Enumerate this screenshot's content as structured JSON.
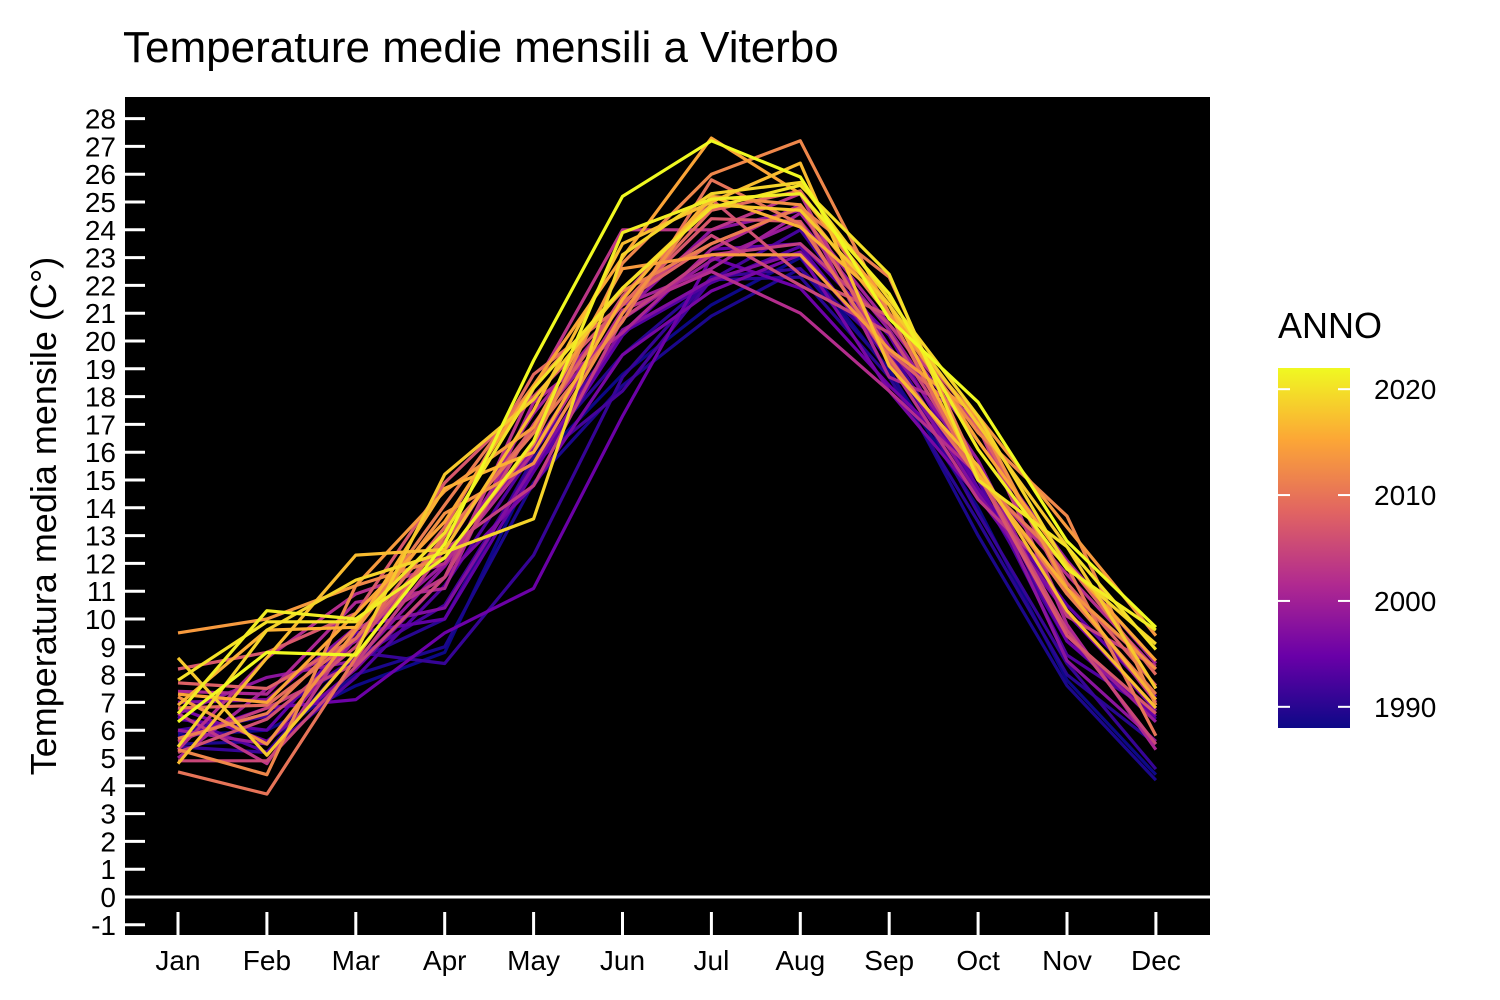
{
  "chart_data": {
    "type": "line",
    "title": "Temperature medie mensili a Viterbo",
    "xlabel": "",
    "ylabel": "Temperatura media mensile (C°)",
    "categories": [
      "Jan",
      "Feb",
      "Mar",
      "Apr",
      "May",
      "Jun",
      "Jul",
      "Aug",
      "Sep",
      "Oct",
      "Nov",
      "Dec"
    ],
    "y_ticks": [
      "-1",
      "0",
      "1",
      "2",
      "3",
      "4",
      "5",
      "6",
      "7",
      "8",
      "9",
      "10",
      "11",
      "12",
      "13",
      "14",
      "15",
      "16",
      "17",
      "18",
      "19",
      "20",
      "21",
      "22",
      "23",
      "24",
      "25",
      "26",
      "27",
      "28"
    ],
    "ylim": [
      -1.3,
      28.8
    ],
    "background": "#000000",
    "zero_line_color": "#ffffff",
    "grid": false,
    "legend": {
      "title": "ANNO",
      "placement": "right",
      "type": "colorbar",
      "colormap": "plasma",
      "range": [
        1988,
        2022
      ],
      "labels": [
        "2020",
        "2010",
        "2000",
        "1990"
      ],
      "label_values": [
        2020,
        2010,
        2000,
        1990
      ],
      "colors": [
        "#0d0887",
        "#6a00a8",
        "#b12a90",
        "#e16462",
        "#fca636",
        "#f0f921"
      ]
    },
    "series": [
      {
        "year": 1988,
        "values": [
          5.8,
          6.0,
          7.6,
          8.8,
          15.5,
          18.8,
          21.3,
          23.0,
          18.9,
          14.0,
          7.8,
          4.4
        ]
      },
      {
        "year": 1989,
        "values": [
          5.5,
          5.6,
          8.0,
          9.0,
          14.9,
          18.4,
          20.9,
          22.6,
          19.0,
          13.0,
          7.6,
          4.2
        ]
      },
      {
        "year": 1990,
        "values": [
          5.9,
          6.5,
          8.5,
          10.0,
          15.8,
          19.5,
          22.2,
          22.3,
          18.7,
          13.5,
          8.0,
          5.5
        ]
      },
      {
        "year": 1991,
        "values": [
          5.4,
          5.2,
          8.8,
          8.4,
          12.3,
          18.7,
          22.3,
          22.6,
          19.6,
          13.8,
          8.4,
          4.6
        ]
      },
      {
        "year": 1992,
        "values": [
          6.0,
          6.5,
          8.6,
          10.5,
          15.6,
          18.2,
          22.2,
          24.0,
          19.7,
          14.7,
          9.2,
          6.4
        ]
      },
      {
        "year": 1993,
        "values": [
          6.5,
          5.2,
          7.9,
          11.2,
          16.0,
          20.3,
          22.1,
          23.4,
          19.3,
          15.0,
          8.7,
          6.6
        ]
      },
      {
        "year": 1994,
        "values": [
          6.4,
          6.0,
          9.5,
          10.0,
          15.3,
          20.2,
          23.3,
          23.5,
          20.2,
          14.7,
          10.5,
          7.2
        ]
      },
      {
        "year": 1995,
        "values": [
          5.7,
          6.8,
          7.1,
          9.5,
          11.1,
          17.3,
          23.0,
          21.9,
          18.4,
          15.3,
          9.2,
          6.5
        ]
      },
      {
        "year": 1996,
        "values": [
          6.8,
          5.6,
          8.2,
          11.5,
          14.8,
          19.5,
          21.8,
          23.1,
          18.2,
          14.4,
          10.2,
          6.8
        ]
      },
      {
        "year": 1997,
        "values": [
          7.0,
          7.1,
          9.7,
          10.4,
          15.5,
          20.4,
          22.2,
          23.2,
          19.5,
          14.5,
          10.3,
          6.7
        ]
      },
      {
        "year": 1998,
        "values": [
          6.6,
          7.9,
          8.5,
          11.9,
          16.2,
          21.0,
          24.0,
          24.7,
          19.8,
          15.4,
          8.5,
          5.6
        ]
      },
      {
        "year": 1999,
        "values": [
          6.0,
          5.5,
          9.3,
          12.0,
          17.0,
          20.8,
          22.9,
          24.3,
          20.4,
          15.7,
          9.4,
          6.3
        ]
      },
      {
        "year": 2000,
        "values": [
          5.0,
          7.5,
          9.2,
          12.5,
          17.4,
          21.3,
          22.6,
          24.6,
          20.6,
          16.4,
          12.1,
          8.4
        ]
      },
      {
        "year": 2001,
        "values": [
          7.4,
          7.3,
          10.6,
          11.1,
          17.8,
          20.3,
          23.3,
          24.9,
          18.7,
          17.3,
          9.8,
          5.3
        ]
      },
      {
        "year": 2002,
        "values": [
          5.3,
          8.6,
          10.9,
          12.0,
          16.0,
          21.1,
          22.5,
          21.0,
          18.2,
          15.2,
          11.6,
          8.2
        ]
      },
      {
        "year": 2003,
        "values": [
          6.6,
          4.8,
          9.6,
          11.5,
          18.3,
          24.0,
          24.0,
          25.3,
          19.2,
          14.3,
          11.1,
          7.0
        ]
      },
      {
        "year": 2004,
        "values": [
          5.6,
          6.8,
          8.4,
          12.5,
          14.8,
          20.8,
          23.1,
          23.5,
          20.6,
          16.9,
          10.1,
          8.3
        ]
      },
      {
        "year": 2005,
        "values": [
          4.9,
          4.9,
          8.3,
          11.5,
          17.0,
          21.4,
          23.8,
          22.0,
          20.3,
          15.3,
          9.6,
          5.5
        ]
      },
      {
        "year": 2006,
        "values": [
          5.2,
          6.4,
          9.0,
          13.0,
          16.7,
          21.6,
          25.1,
          22.4,
          20.9,
          17.1,
          11.0,
          8.2
        ]
      },
      {
        "year": 2007,
        "values": [
          8.2,
          8.8,
          10.2,
          14.9,
          18.0,
          21.3,
          24.4,
          24.3,
          19.3,
          15.2,
          9.4,
          6.6
        ]
      },
      {
        "year": 2008,
        "values": [
          7.7,
          7.5,
          9.3,
          12.8,
          16.9,
          21.4,
          23.5,
          24.8,
          19.6,
          16.9,
          11.3,
          7.6
        ]
      },
      {
        "year": 2009,
        "values": [
          6.8,
          6.9,
          9.3,
          13.3,
          18.8,
          21.3,
          24.7,
          25.4,
          21.0,
          15.0,
          12.0,
          8.0
        ]
      },
      {
        "year": 2010,
        "values": [
          4.5,
          3.7,
          8.6,
          13.0,
          16.7,
          20.7,
          25.8,
          24.2,
          19.4,
          15.1,
          11.9,
          5.8
        ]
      },
      {
        "year": 2011,
        "values": [
          5.7,
          6.6,
          9.7,
          14.1,
          18.4,
          21.8,
          23.5,
          24.8,
          22.3,
          15.3,
          10.9,
          7.3
        ]
      },
      {
        "year": 2012,
        "values": [
          5.3,
          4.4,
          11.2,
          12.2,
          16.3,
          22.8,
          26.0,
          27.2,
          21.0,
          16.7,
          13.7,
          6.9
        ]
      },
      {
        "year": 2013,
        "values": [
          7.2,
          5.5,
          9.6,
          13.8,
          15.6,
          21.0,
          25.2,
          24.9,
          20.9,
          17.2,
          11.1,
          8.2
        ]
      },
      {
        "year": 2014,
        "values": [
          9.5,
          10.0,
          11.2,
          14.6,
          16.9,
          22.6,
          23.1,
          23.1,
          19.7,
          17.3,
          13.3,
          9.4
        ]
      },
      {
        "year": 2015,
        "values": [
          7.3,
          7.0,
          10.2,
          13.5,
          18.4,
          23.0,
          27.3,
          25.3,
          21.3,
          16.4,
          12.0,
          8.5
        ]
      },
      {
        "year": 2016,
        "values": [
          6.9,
          9.6,
          9.7,
          14.7,
          16.0,
          21.5,
          25.2,
          24.1,
          21.3,
          15.2,
          11.1,
          7.1
        ]
      },
      {
        "year": 2017,
        "values": [
          4.8,
          8.6,
          12.3,
          12.5,
          17.5,
          23.5,
          25.0,
          26.4,
          19.1,
          15.5,
          10.3,
          6.8
        ]
      },
      {
        "year": 2018,
        "values": [
          8.6,
          5.1,
          8.8,
          15.2,
          17.9,
          21.9,
          24.9,
          24.7,
          21.3,
          17.0,
          12.6,
          7.5
        ]
      },
      {
        "year": 2019,
        "values": [
          5.4,
          9.6,
          11.4,
          12.4,
          13.6,
          23.1,
          25.3,
          25.7,
          21.5,
          17.3,
          11.9,
          9.1
        ]
      },
      {
        "year": 2020,
        "values": [
          7.8,
          9.9,
          9.9,
          13.1,
          18.3,
          21.9,
          24.8,
          25.6,
          22.4,
          15.0,
          12.6,
          8.9
        ]
      },
      {
        "year": 2021,
        "values": [
          6.6,
          10.3,
          10.0,
          12.2,
          16.4,
          23.9,
          25.1,
          25.3,
          21.7,
          16.1,
          11.8,
          9.6
        ]
      },
      {
        "year": 2022,
        "values": [
          6.3,
          8.8,
          8.7,
          12.7,
          19.3,
          25.2,
          27.2,
          25.9,
          20.8,
          17.8,
          12.8,
          9.7
        ]
      }
    ]
  }
}
